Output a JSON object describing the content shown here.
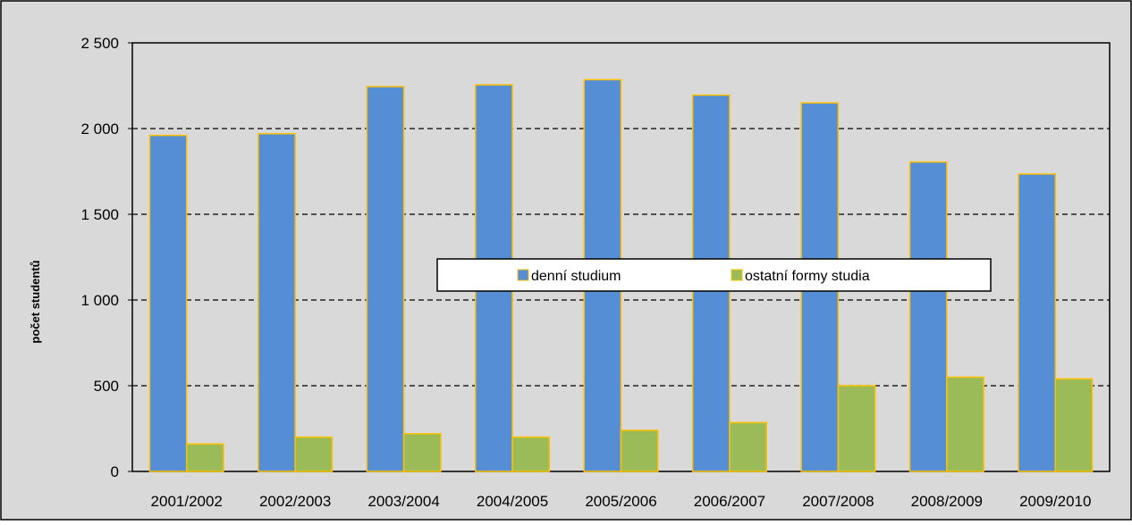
{
  "chart_data": {
    "type": "bar",
    "title": "",
    "xlabel": "",
    "ylabel": "počet studentů",
    "ylim": [
      0,
      2500
    ],
    "yticks": [
      0,
      500,
      1000,
      1500,
      2000,
      2500
    ],
    "ytick_labels": [
      "0",
      "500",
      "1 000",
      "1 500",
      "2 000",
      "2 500"
    ],
    "grid": "horizontal dashed",
    "legend_position": "center",
    "categories": [
      "2001/2002",
      "2002/2003",
      "2003/2004",
      "2004/2005",
      "2005/2006",
      "2006/2007",
      "2007/2008",
      "2008/2009",
      "2009/2010"
    ],
    "series": [
      {
        "name": "denní studium",
        "color": "#558ed5",
        "values": [
          1960,
          1970,
          2245,
          2255,
          2285,
          2195,
          2150,
          1805,
          1735
        ]
      },
      {
        "name": "ostatní formy studia",
        "color": "#9bbb59",
        "values": [
          160,
          200,
          220,
          200,
          240,
          285,
          500,
          550,
          540
        ]
      }
    ],
    "bar_border_color": "#ffc000",
    "background_color": "#d9d9d9"
  }
}
